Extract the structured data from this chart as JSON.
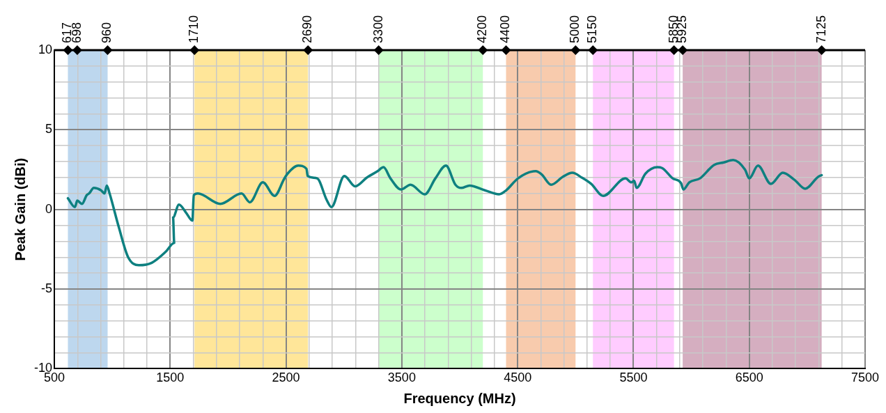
{
  "chart_data": {
    "type": "line",
    "xlabel": "Frequency (MHz)",
    "ylabel": "Peak Gain (dBi)",
    "xlim": [
      500,
      7500
    ],
    "ylim": [
      -10,
      10
    ],
    "xticks": [
      500,
      {
        "value": 700,
        "label": null
      },
      {
        "value": 900,
        "label": null
      },
      {
        "value": 1100,
        "label": null
      },
      {
        "value": 1300,
        "label": null
      },
      1500,
      {
        "value": 1700,
        "label": null
      },
      {
        "value": 1900,
        "label": null
      },
      {
        "value": 2100,
        "label": null
      },
      {
        "value": 2300,
        "label": null
      },
      2500,
      {
        "value": 2700,
        "label": null
      },
      {
        "value": 2900,
        "label": null
      },
      {
        "value": 3100,
        "label": null
      },
      {
        "value": 3300,
        "label": null
      },
      3500,
      {
        "value": 3700,
        "label": null
      },
      {
        "value": 3900,
        "label": null
      },
      {
        "value": 4100,
        "label": null
      },
      {
        "value": 4300,
        "label": null
      },
      4500,
      {
        "value": 4700,
        "label": null
      },
      {
        "value": 4900,
        "label": null
      },
      {
        "value": 5100,
        "label": null
      },
      {
        "value": 5300,
        "label": null
      },
      5500,
      {
        "value": 5700,
        "label": null
      },
      {
        "value": 5900,
        "label": null
      },
      {
        "value": 6100,
        "label": null
      },
      {
        "value": 6300,
        "label": null
      },
      6500,
      {
        "value": 6700,
        "label": null
      },
      {
        "value": 6900,
        "label": null
      },
      {
        "value": 7100,
        "label": null
      },
      {
        "value": 7300,
        "label": null
      },
      7500
    ],
    "yticks": [
      -10,
      {
        "value": -9,
        "label": null
      },
      {
        "value": -8,
        "label": null
      },
      {
        "value": -7,
        "label": null
      },
      {
        "value": -6,
        "label": null
      },
      -5,
      {
        "value": -4,
        "label": null
      },
      {
        "value": -3,
        "label": null
      },
      {
        "value": -2,
        "label": null
      },
      {
        "value": -1,
        "label": null
      },
      0,
      {
        "value": 1,
        "label": null
      },
      {
        "value": 2,
        "label": null
      },
      {
        "value": 3,
        "label": null
      },
      {
        "value": 4,
        "label": null
      },
      5,
      {
        "value": 6,
        "label": null
      },
      {
        "value": 7,
        "label": null
      },
      {
        "value": 8,
        "label": null
      },
      {
        "value": 9,
        "label": null
      },
      10
    ],
    "x2lim": [
      500,
      7500
    ],
    "x2ticks": [
      617,
      698,
      960,
      1710,
      2690,
      3300,
      4200,
      4400,
      5000,
      5150,
      5850,
      5925,
      7125
    ],
    "grid": true,
    "legend": false,
    "marker": "none",
    "line_style": "solid",
    "bands": [
      {
        "axis": "x",
        "from": 617,
        "to": 960,
        "color": "#bdd7ee"
      },
      {
        "axis": "x",
        "from": 1710,
        "to": 2690,
        "color": "#ffe699"
      },
      {
        "axis": "x",
        "from": 3300,
        "to": 4200,
        "color": "#ccffcc"
      },
      {
        "axis": "x",
        "from": 4400,
        "to": 5000,
        "color": "#f8cbad"
      },
      {
        "axis": "x",
        "from": 5150,
        "to": 5850,
        "color": "#ffccff"
      },
      {
        "axis": "x",
        "from": 5925,
        "to": 7125,
        "color": "#d5aec0"
      }
    ],
    "series": [
      {
        "type": "scatter",
        "color": "#000000",
        "marker": "diamond",
        "x": [
          617,
          698,
          960,
          1710,
          2690,
          3300,
          4200,
          4400,
          5000,
          5150,
          5850,
          5925,
          7125
        ],
        "values": [
          10,
          10,
          10,
          10,
          10,
          10,
          10,
          10,
          10,
          10,
          10,
          10,
          10
        ]
      },
      {
        "color": "#0e8080",
        "x": [
          617,
          678,
          698,
          739,
          780,
          800,
          841,
          903,
          933,
          953,
          977,
          1056,
          1137,
          1229,
          1341,
          1463,
          1535,
          1525,
          1576,
          1637,
          1692,
          1704,
          1739,
          1933,
          2116,
          2188,
          2300,
          2402,
          2483,
          2514,
          2606,
          2677,
          2687,
          2769,
          2851,
          2892,
          3004,
          3096,
          3198,
          3291,
          3342,
          3402,
          3493,
          3575,
          3698,
          3790,
          3881,
          3963,
          4014,
          4085,
          4217,
          4340,
          4401,
          4503,
          4656,
          4707,
          4789,
          4891,
          4972,
          5054,
          5136,
          5238,
          5431,
          5482,
          5506,
          5527,
          5604,
          5706,
          5747,
          5839,
          5911,
          5931,
          5982,
          6074,
          6197,
          6279,
          6361,
          6463,
          6500,
          6575,
          6687,
          6789,
          6891,
          6983,
          7095,
          7125
        ],
        "values": [
          0.7,
          0.15,
          0.55,
          0.35,
          0.9,
          1.0,
          1.35,
          1.2,
          1.0,
          1.5,
          1.0,
          -1.1,
          -3.0,
          -3.5,
          -3.35,
          -2.65,
          -2.1,
          -0.5,
          0.3,
          -0.2,
          -0.7,
          0.9,
          1.0,
          0.35,
          1.0,
          0.45,
          1.7,
          0.85,
          1.9,
          2.25,
          2.75,
          2.55,
          2.1,
          1.95,
          0.6,
          0.15,
          2.1,
          1.45,
          2.0,
          2.4,
          2.65,
          1.95,
          1.25,
          1.55,
          0.95,
          1.95,
          2.75,
          1.55,
          1.35,
          1.5,
          1.2,
          0.95,
          1.2,
          1.95,
          2.4,
          2.2,
          1.55,
          2.05,
          2.3,
          2.0,
          1.6,
          0.85,
          1.95,
          1.7,
          1.8,
          1.35,
          2.25,
          2.65,
          2.6,
          1.95,
          1.65,
          1.25,
          1.7,
          1.95,
          2.8,
          2.95,
          3.1,
          2.5,
          1.95,
          2.75,
          1.6,
          2.3,
          1.85,
          1.3,
          2.05,
          2.15
        ]
      }
    ]
  }
}
